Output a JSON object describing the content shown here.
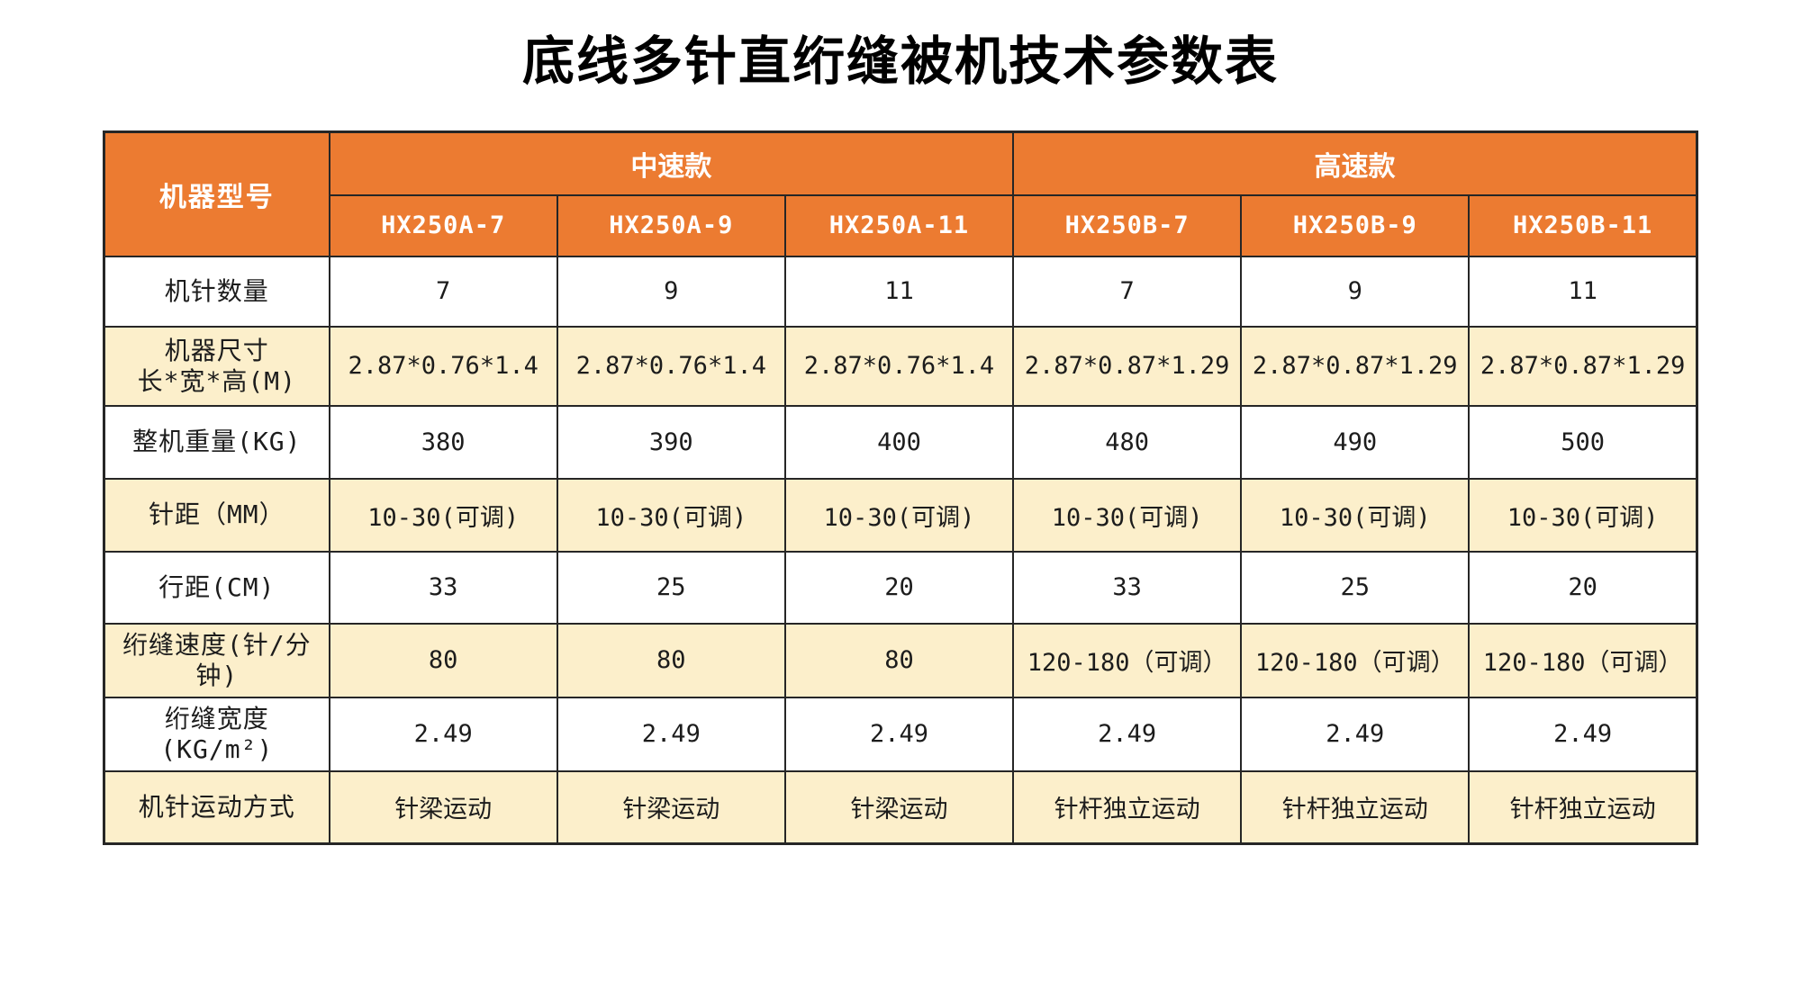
{
  "title": "底线多针直绗缝被机技术参数表",
  "table": {
    "corner_label": "机器型号",
    "groups": [
      {
        "label": "中速款",
        "models": [
          "HX250A-7",
          "HX250A-9",
          "HX250A-11"
        ]
      },
      {
        "label": "高速款",
        "models": [
          "HX250B-7",
          "HX250B-9",
          "HX250B-11"
        ]
      }
    ],
    "rows": [
      {
        "label": "机针数量",
        "values": [
          "7",
          "9",
          "11",
          "7",
          "9",
          "11"
        ],
        "shaded": false
      },
      {
        "label": "机器尺寸\n长*宽*高(M)",
        "values": [
          "2.87*0.76*1.4",
          "2.87*0.76*1.4",
          "2.87*0.76*1.4",
          "2.87*0.87*1.29",
          "2.87*0.87*1.29",
          "2.87*0.87*1.29"
        ],
        "shaded": true
      },
      {
        "label": "整机重量(KG)",
        "values": [
          "380",
          "390",
          "400",
          "480",
          "490",
          "500"
        ],
        "shaded": false
      },
      {
        "label": "针距（MM）",
        "values": [
          "10-30(可调)",
          "10-30(可调)",
          "10-30(可调)",
          "10-30(可调)",
          "10-30(可调)",
          "10-30(可调)"
        ],
        "shaded": true
      },
      {
        "label": "行距(CM)",
        "values": [
          "33",
          "25",
          "20",
          "33",
          "25",
          "20"
        ],
        "shaded": false
      },
      {
        "label": "绗缝速度(针/分\n钟)",
        "values": [
          "80",
          "80",
          "80",
          "120-180（可调）",
          "120-180（可调）",
          "120-180（可调）"
        ],
        "shaded": true
      },
      {
        "label": "绗缝宽度(KG/m²)",
        "values": [
          "2.49",
          "2.49",
          "2.49",
          "2.49",
          "2.49",
          "2.49"
        ],
        "shaded": false
      },
      {
        "label": "机针运动方式",
        "values": [
          "针梁运动",
          "针梁运动",
          "针梁运动",
          "针杆独立运动",
          "针杆独立运动",
          "针杆独立运动"
        ],
        "shaded": true
      }
    ],
    "colors": {
      "header_bg": "#EC7B31",
      "shaded_row_bg": "#FCEFCB",
      "border": "#262626",
      "header_text": "#FFFFFF",
      "body_text": "#1C1C1C"
    }
  }
}
